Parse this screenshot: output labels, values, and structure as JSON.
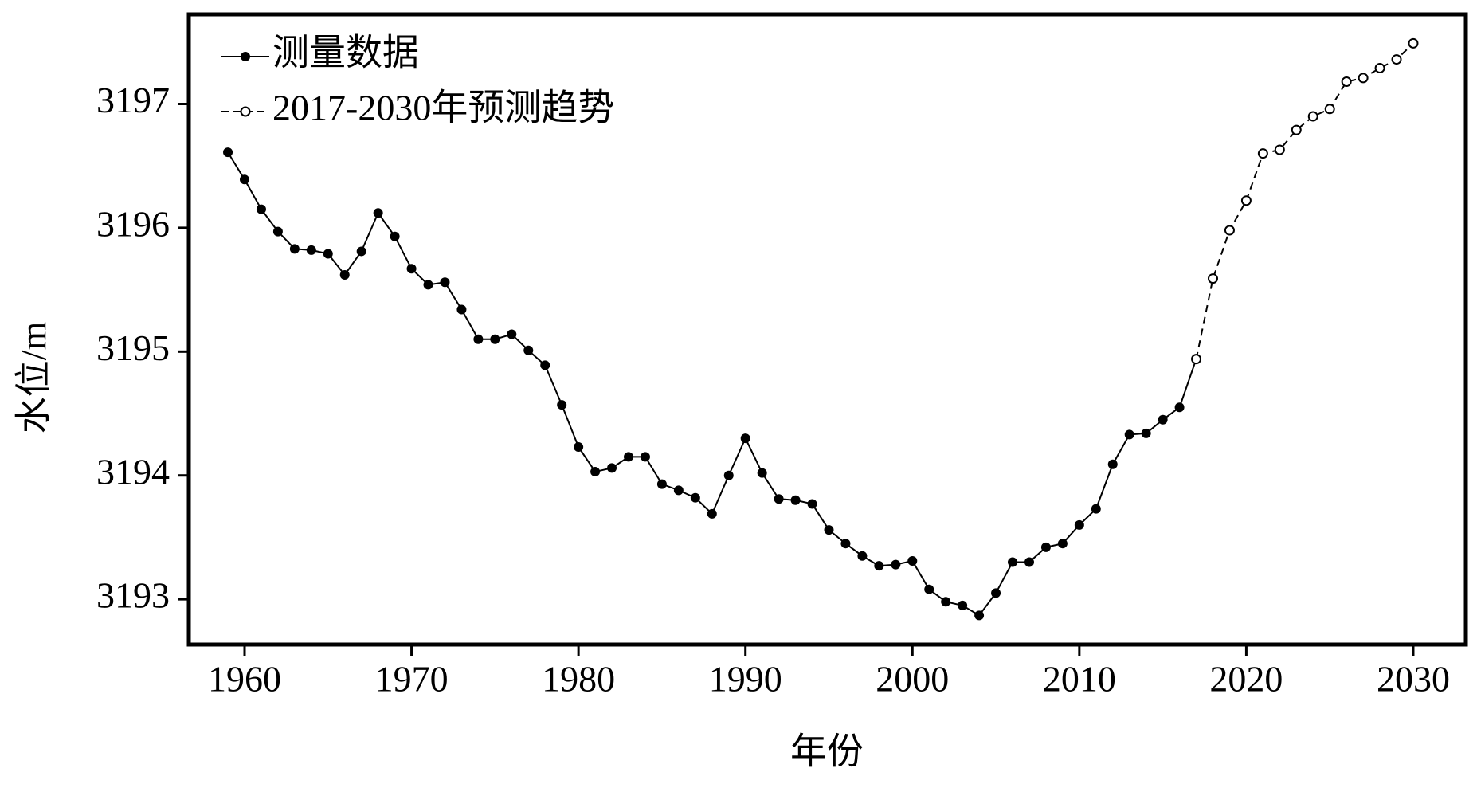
{
  "chart_data": {
    "type": "line",
    "xlabel": "年份",
    "ylabel": "水位/m",
    "xlim": [
      1956.66,
      2033.15
    ],
    "ylim": [
      3192.634,
      3197.724
    ],
    "xticks": [
      1960,
      1970,
      1980,
      1990,
      2000,
      2010,
      2020,
      2030
    ],
    "yticks": [
      3193,
      3194,
      3195,
      3196,
      3197
    ],
    "legend": "upper left",
    "series": [
      {
        "name": "测量数据",
        "color": "#000000",
        "linestyle": "solid",
        "marker": "filled",
        "x": [
          1959,
          1960,
          1961,
          1962,
          1963,
          1964,
          1965,
          1966,
          1967,
          1968,
          1969,
          1970,
          1971,
          1972,
          1973,
          1974,
          1975,
          1976,
          1977,
          1978,
          1979,
          1980,
          1981,
          1982,
          1983,
          1984,
          1985,
          1986,
          1987,
          1988,
          1989,
          1990,
          1991,
          1992,
          1993,
          1994,
          1995,
          1996,
          1997,
          1998,
          1999,
          2000,
          2001,
          2002,
          2003,
          2004,
          2005,
          2006,
          2007,
          2008,
          2009,
          2010,
          2011,
          2012,
          2013,
          2014,
          2015,
          2016,
          2017
        ],
        "values": [
          3196.61,
          3196.39,
          3196.15,
          3195.97,
          3195.83,
          3195.82,
          3195.79,
          3195.62,
          3195.81,
          3196.12,
          3195.93,
          3195.67,
          3195.54,
          3195.56,
          3195.34,
          3195.1,
          3195.1,
          3195.14,
          3195.01,
          3194.89,
          3194.57,
          3194.23,
          3194.03,
          3194.06,
          3194.15,
          3194.15,
          3193.93,
          3193.88,
          3193.82,
          3193.69,
          3194.0,
          3194.3,
          3194.02,
          3193.81,
          3193.8,
          3193.77,
          3193.56,
          3193.45,
          3193.35,
          3193.27,
          3193.28,
          3193.31,
          3193.08,
          3192.98,
          3192.95,
          3192.87,
          3193.05,
          3193.3,
          3193.3,
          3193.42,
          3193.45,
          3193.6,
          3193.73,
          3194.09,
          3194.33,
          3194.34,
          3194.45,
          3194.55,
          3194.94
        ]
      },
      {
        "name": "2017-2030年预测趋势",
        "color": "#000000",
        "linestyle": "dashed",
        "marker": "open",
        "x": [
          2017,
          2018,
          2019,
          2020,
          2021,
          2022,
          2023,
          2024,
          2025,
          2026,
          2027,
          2028,
          2029,
          2030
        ],
        "values": [
          3194.94,
          3195.59,
          3195.98,
          3196.22,
          3196.6,
          3196.63,
          3196.79,
          3196.9,
          3196.96,
          3197.18,
          3197.21,
          3197.29,
          3197.36,
          3197.49
        ]
      }
    ]
  }
}
